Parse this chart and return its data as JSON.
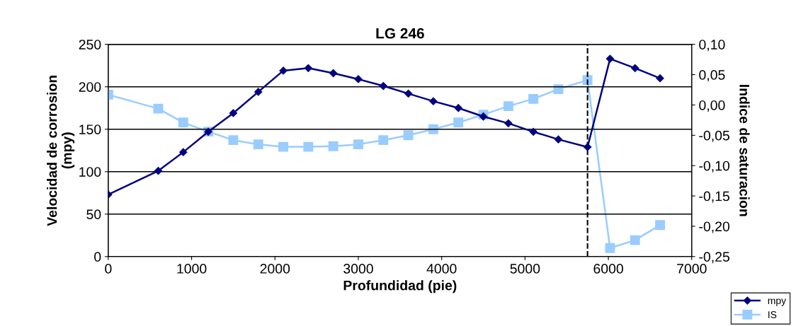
{
  "chart_data": {
    "type": "line",
    "title": "LG 246",
    "xlabel": "Profundidad (pie)",
    "ylabel": "Velocidad de corrosion\n(mpy)",
    "y2label": "Indice de saturacion",
    "x": [
      0,
      600,
      900,
      1200,
      1500,
      1800,
      2100,
      2400,
      2700,
      3000,
      3300,
      3600,
      3900,
      4200,
      4500,
      4800,
      5100,
      5400,
      5750,
      6020,
      6320,
      6620
    ],
    "series": [
      {
        "name": "mpy",
        "color": "#000080",
        "marker": "diamond",
        "values": [
          73,
          101,
          123,
          147,
          169,
          194,
          219,
          222,
          216,
          209,
          201,
          192,
          183,
          175,
          165,
          157,
          147,
          138,
          129,
          233,
          222,
          210
        ]
      },
      {
        "name": "IS",
        "color": "#99ccff",
        "marker": "square",
        "axis": "y2",
        "values": [
          0.017,
          -0.006,
          -0.029,
          -0.044,
          -0.058,
          -0.065,
          -0.069,
          -0.069,
          -0.068,
          -0.065,
          -0.058,
          -0.05,
          -0.04,
          -0.029,
          -0.016,
          -0.002,
          0.01,
          0.026,
          0.041,
          -0.236,
          -0.223,
          -0.198
        ]
      }
    ],
    "xlim": [
      0,
      7000
    ],
    "xticks": [
      0,
      1000,
      2000,
      3000,
      4000,
      5000,
      6000,
      7000
    ],
    "ylim": [
      0,
      250
    ],
    "yticks": [
      0,
      50,
      100,
      150,
      200,
      250
    ],
    "y2lim": [
      -0.25,
      0.1
    ],
    "y2ticks": [
      {
        "value": -0.25,
        "label": "-0,25"
      },
      {
        "value": -0.2,
        "label": "-0,20"
      },
      {
        "value": -0.15,
        "label": "-0,15"
      },
      {
        "value": -0.1,
        "label": "-0,10"
      },
      {
        "value": -0.05,
        "label": "-0,05"
      },
      {
        "value": 0,
        "label": "0,00"
      },
      {
        "value": 0.05,
        "label": "0,05"
      },
      {
        "value": 0.1,
        "label": "0,10"
      }
    ],
    "ref_lines": [
      {
        "axis": "x",
        "value": 5750,
        "color": "#000000",
        "line_style": "dashed"
      }
    ],
    "grid": "y",
    "legend": "bottom right",
    "line_style": "solid"
  }
}
